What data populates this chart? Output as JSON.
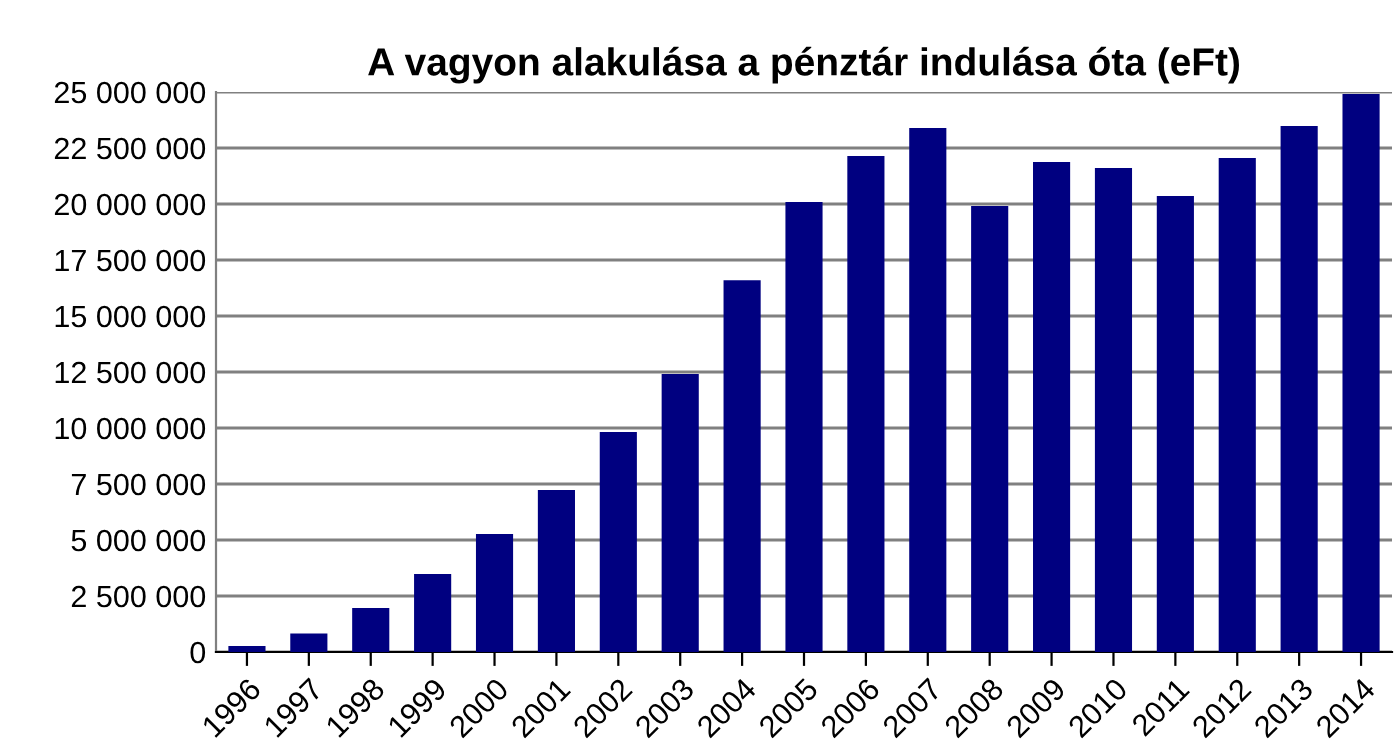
{
  "chart_data": {
    "type": "bar",
    "title": "A vagyon alakulása a pénztár indulása óta (eFt)",
    "categories": [
      "1996",
      "1997",
      "1998",
      "1999",
      "2000",
      "2001",
      "2002",
      "2003",
      "2004",
      "2005",
      "2006",
      "2007",
      "2008",
      "2009",
      "2010",
      "2011",
      "2012",
      "2013",
      "2014"
    ],
    "values": [
      270000,
      830000,
      1960000,
      3480000,
      5270000,
      7230000,
      9820000,
      12410000,
      16600000,
      20090000,
      22140000,
      23390000,
      19910000,
      21880000,
      21610000,
      20360000,
      22050000,
      23480000,
      24910000
    ],
    "color": "#000080",
    "ylim": [
      0,
      25000000
    ],
    "yticks": [
      {
        "value": 0,
        "label": "0"
      },
      {
        "value": 2500000,
        "label": "2 500 000"
      },
      {
        "value": 5000000,
        "label": "5 000 000"
      },
      {
        "value": 7500000,
        "label": "7 500 000"
      },
      {
        "value": 10000000,
        "label": "10 000 000"
      },
      {
        "value": 12500000,
        "label": "12 500 000"
      },
      {
        "value": 15000000,
        "label": "15 000 000"
      },
      {
        "value": 17500000,
        "label": "17 500 000"
      },
      {
        "value": 20000000,
        "label": "20 000 000"
      },
      {
        "value": 22500000,
        "label": "22 500 000"
      },
      {
        "value": 25000000,
        "label": "25 000 000"
      }
    ],
    "grid": "y"
  }
}
